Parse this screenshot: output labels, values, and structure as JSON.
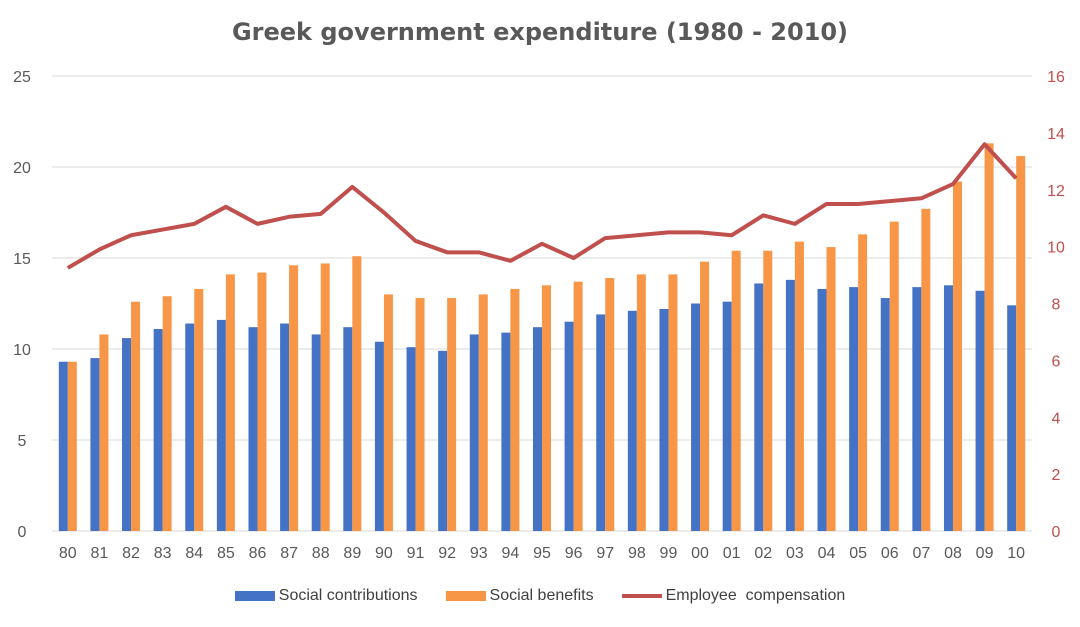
{
  "chart_data": {
    "type": "bar+line",
    "title": "Greek government expenditure (1980 - 2010)",
    "categories": [
      "80",
      "81",
      "82",
      "83",
      "84",
      "85",
      "86",
      "87",
      "88",
      "89",
      "90",
      "91",
      "92",
      "93",
      "94",
      "95",
      "96",
      "97",
      "98",
      "99",
      "00",
      "01",
      "02",
      "03",
      "04",
      "05",
      "06",
      "07",
      "08",
      "09",
      "10"
    ],
    "series": [
      {
        "name": "Social contributions",
        "type": "bar",
        "axis": "left",
        "color": "#4472C4",
        "values": [
          9.3,
          9.5,
          10.6,
          11.1,
          11.4,
          11.6,
          11.2,
          11.4,
          10.8,
          11.2,
          10.4,
          10.1,
          9.9,
          10.8,
          10.9,
          11.2,
          11.5,
          11.9,
          12.1,
          12.2,
          12.5,
          12.6,
          13.6,
          13.8,
          13.3,
          13.4,
          12.8,
          13.4,
          13.5,
          13.2,
          12.4
        ]
      },
      {
        "name": "Social benefits",
        "type": "bar",
        "axis": "left",
        "color": "#F79646",
        "values": [
          9.3,
          10.8,
          12.6,
          12.9,
          13.3,
          14.1,
          14.2,
          14.6,
          14.7,
          15.1,
          13.0,
          12.8,
          12.8,
          13.0,
          13.3,
          13.5,
          13.7,
          13.9,
          14.1,
          14.1,
          14.8,
          15.4,
          15.4,
          15.9,
          15.6,
          16.3,
          17.0,
          17.7,
          19.2,
          21.3,
          20.6
        ]
      },
      {
        "name": "Employee  compensation",
        "type": "line",
        "axis": "right",
        "color": "#C0504D",
        "values": [
          9.25,
          9.9,
          10.4,
          10.6,
          10.8,
          11.4,
          10.8,
          11.05,
          11.15,
          12.1,
          11.2,
          10.2,
          9.8,
          9.8,
          9.5,
          10.1,
          9.6,
          10.3,
          10.4,
          10.5,
          10.5,
          10.4,
          11.1,
          10.8,
          11.5,
          11.5,
          11.6,
          11.7,
          12.2,
          13.6,
          12.4
        ]
      }
    ],
    "y_left": {
      "range": [
        0,
        25
      ],
      "ticks": [
        "0",
        "5",
        "10",
        "15",
        "20",
        "25"
      ]
    },
    "y_right": {
      "range": [
        0,
        16
      ],
      "ticks": [
        "0",
        "2",
        "4",
        "6",
        "8",
        "10",
        "12",
        "14",
        "16"
      ],
      "color": "#C0504D"
    },
    "grid": true,
    "legend": "bottom"
  }
}
